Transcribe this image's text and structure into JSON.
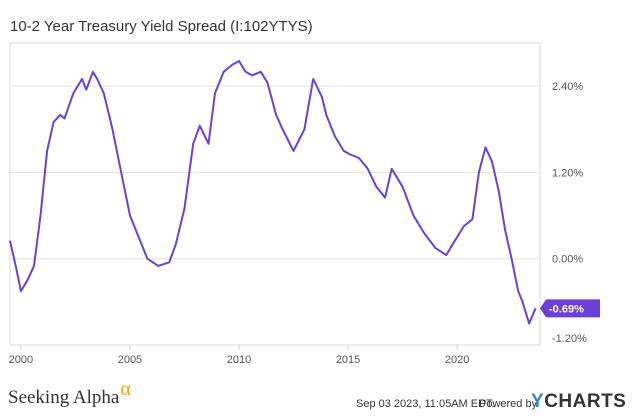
{
  "chart_data": {
    "type": "line",
    "title": "10-2 Year Treasury Yield Spread (I:102YTYS)",
    "x_tick_labels": [
      "2000",
      "2005",
      "2010",
      "2015",
      "2020"
    ],
    "y_tick_labels": [
      "2.40%",
      "1.20%",
      "0.00%",
      "-1.20%"
    ],
    "ylim": [
      -1.2,
      3.0
    ],
    "xlim": [
      1999.5,
      2023.8
    ],
    "grid": true,
    "line_color": "#6c3fd6",
    "series": [
      {
        "x": [
          1999.5,
          1999.8,
          2000.0,
          2000.3,
          2000.6,
          2000.9,
          2001.2,
          2001.5,
          2001.8,
          2002.0,
          2002.4,
          2002.8,
          2003.0,
          2003.3,
          2003.5,
          2003.8,
          2004.2,
          2004.6,
          2005.0,
          2005.4,
          2005.8,
          2006.3,
          2006.8,
          2007.1,
          2007.5,
          2007.9,
          2008.2,
          2008.6,
          2008.9,
          2009.3,
          2009.7,
          2010.0,
          2010.3,
          2010.6,
          2011.0,
          2011.3,
          2011.7,
          2012.0,
          2012.5,
          2013.0,
          2013.4,
          2013.8,
          2014.0,
          2014.4,
          2014.8,
          2015.1,
          2015.5,
          2015.9,
          2016.3,
          2016.7,
          2017.0,
          2017.5,
          2018.0,
          2018.5,
          2019.0,
          2019.5,
          2019.9,
          2020.3,
          2020.7,
          2021.0,
          2021.3,
          2021.6,
          2021.9,
          2022.2,
          2022.5,
          2022.8,
          2023.0,
          2023.3,
          2023.6
        ],
        "y": [
          0.25,
          -0.15,
          -0.45,
          -0.3,
          -0.1,
          0.6,
          1.5,
          1.9,
          2.0,
          1.95,
          2.3,
          2.5,
          2.35,
          2.6,
          2.5,
          2.3,
          1.8,
          1.2,
          0.6,
          0.3,
          0.0,
          -0.1,
          -0.05,
          0.2,
          0.7,
          1.6,
          1.85,
          1.6,
          2.3,
          2.6,
          2.7,
          2.75,
          2.6,
          2.55,
          2.6,
          2.45,
          2.0,
          1.8,
          1.5,
          1.8,
          2.5,
          2.25,
          2.0,
          1.7,
          1.5,
          1.45,
          1.4,
          1.25,
          1.0,
          0.85,
          1.25,
          1.0,
          0.6,
          0.35,
          0.15,
          0.05,
          0.25,
          0.45,
          0.55,
          1.2,
          1.55,
          1.35,
          0.95,
          0.4,
          0.0,
          -0.45,
          -0.6,
          -0.9,
          -0.69
        ]
      }
    ],
    "last_value_label": "-0.69%"
  },
  "footer": {
    "brand": "Seeking Alpha",
    "brand_mark": "α",
    "date": "Sep 03 2023, 11:05AM EDT.",
    "powered": "Powered by",
    "logo_y": "Y",
    "logo_rest": "CHARTS"
  }
}
